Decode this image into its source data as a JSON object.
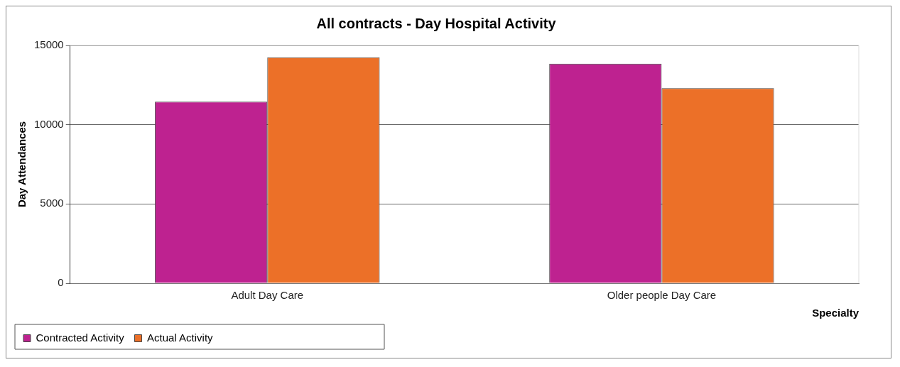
{
  "chart_data": {
    "type": "bar",
    "title": "All contracts - Day Hospital Activity",
    "xlabel": "Specialty",
    "ylabel": "Day Attendances",
    "categories": [
      "Adult Day Care",
      "Older people Day Care"
    ],
    "series": [
      {
        "name": "Contracted Activity",
        "color": "#be2290",
        "values": [
          11450,
          13850
        ]
      },
      {
        "name": "Actual Activity",
        "color": "#ec7028",
        "values": [
          14250,
          12300
        ]
      }
    ],
    "ylim": [
      0,
      15000
    ],
    "yticks": [
      0,
      5000,
      10000,
      15000
    ],
    "grid": "y",
    "legend": "bottom left"
  }
}
